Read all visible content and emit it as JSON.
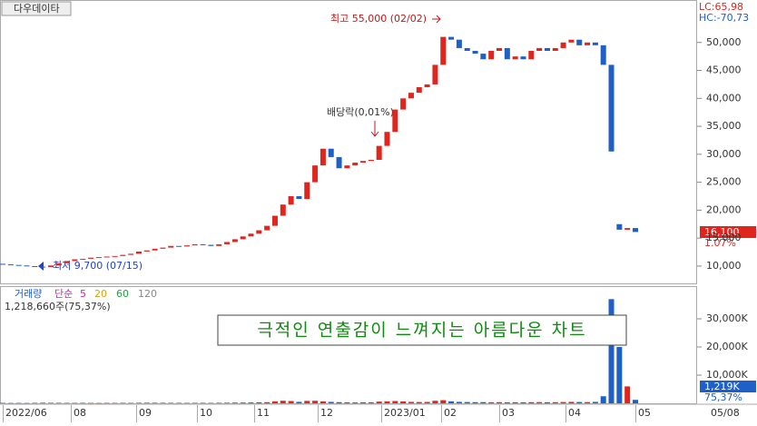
{
  "chart_data": [
    {
      "type": "candlestick",
      "title": "다우데이타",
      "indicators": [
        "LC:65,98",
        "HC:-70,73"
      ],
      "xlabels": [
        "2022/06",
        "08",
        "09",
        "10",
        "11",
        "12",
        "2023/01",
        "02",
        "03",
        "04",
        "05",
        "05/08"
      ],
      "open": [
        10400,
        10300,
        10200,
        10100,
        10000,
        9900,
        9800,
        10100,
        10500,
        10900,
        11200,
        11300,
        11500,
        11600,
        11700,
        11800,
        12000,
        12200,
        12600,
        12800,
        13100,
        13300,
        13600,
        13500,
        13700,
        13900,
        13800,
        13600,
        13900,
        14300,
        14800,
        15300,
        15800,
        16400,
        17200,
        19000,
        21000,
        22500,
        22000,
        25000,
        28000,
        31000,
        29500,
        27500,
        28000,
        28500,
        28800,
        29000,
        31500,
        34000,
        38000,
        40000,
        41000,
        42000,
        42500,
        46000,
        51000,
        50500,
        49000,
        48500,
        48000,
        47000,
        48500,
        49000,
        47000,
        47500,
        47000,
        48500,
        49000,
        48500,
        49000,
        50000,
        50500,
        49500,
        50000,
        49500,
        46000,
        17500,
        16500,
        16800
      ],
      "close": [
        10300,
        10200,
        10100,
        10000,
        9900,
        9800,
        10100,
        10500,
        10900,
        11200,
        11300,
        11500,
        11600,
        11700,
        11800,
        12000,
        12200,
        12600,
        12800,
        13100,
        13300,
        13600,
        13500,
        13700,
        13900,
        13800,
        13600,
        13900,
        14300,
        14800,
        15300,
        15800,
        16400,
        17200,
        19000,
        21000,
        22500,
        22000,
        25000,
        28000,
        31000,
        29500,
        27500,
        28000,
        28500,
        28800,
        29000,
        31500,
        34000,
        38000,
        40000,
        41000,
        42000,
        42500,
        46000,
        51000,
        50500,
        49000,
        48500,
        48000,
        47000,
        48500,
        49000,
        47000,
        47500,
        47000,
        48500,
        49000,
        48500,
        49000,
        50000,
        50500,
        49500,
        50000,
        49500,
        46000,
        30500,
        16500,
        16800,
        16100
      ],
      "up_color": "#e0251f",
      "down_color": "#1f5fc8",
      "ylim": [
        6900,
        57600
      ],
      "yticks": [
        {
          "value": 10000,
          "label": "10,000"
        },
        {
          "value": 15000,
          "label": "15,000"
        },
        {
          "value": 20000,
          "label": "20,000"
        },
        {
          "value": 25000,
          "label": "25,000"
        },
        {
          "value": 30000,
          "label": "30,000"
        },
        {
          "value": 35000,
          "label": "35,000"
        },
        {
          "value": 40000,
          "label": "40,000"
        },
        {
          "value": 45000,
          "label": "45,000"
        },
        {
          "value": 50000,
          "label": "50,000"
        }
      ],
      "annotations": {
        "high": "최고 55,000 (02/02)",
        "dividend": "배당락(0,01%)",
        "low": "최저 9,700 (07/15)"
      },
      "last": {
        "price": "16,100",
        "change": "1.07%"
      },
      "banner": "극적인 연출감이 느껴지는 아름다운 차트"
    },
    {
      "type": "volume",
      "title": "거래량",
      "ma_type": "단순",
      "legend": [
        {
          "label": "5",
          "color": "#d020c0"
        },
        {
          "label": "20",
          "color": "#e0a000"
        },
        {
          "label": "60",
          "color": "#20a040"
        },
        {
          "label": "120",
          "color": "#888888"
        }
      ],
      "summary": "1,218,660주(75,37%)",
      "values": [
        150,
        120,
        130,
        110,
        160,
        200,
        180,
        170,
        150,
        140,
        160,
        130,
        120,
        150,
        140,
        170,
        160,
        180,
        200,
        190,
        180,
        170,
        160,
        150,
        170,
        160,
        150,
        180,
        200,
        250,
        260,
        300,
        350,
        400,
        700,
        900,
        800,
        500,
        850,
        900,
        700,
        500,
        400,
        350,
        300,
        320,
        350,
        600,
        700,
        800,
        650,
        500,
        450,
        480,
        900,
        1100,
        700,
        500,
        450,
        400,
        420,
        380,
        400,
        350,
        380,
        360,
        400,
        420,
        380,
        400,
        450,
        500,
        450,
        420,
        500,
        2500,
        37000,
        20000,
        6000,
        1219
      ],
      "ylim": [
        0,
        41300
      ],
      "yticks": [
        {
          "value": 10000,
          "label": "10,000K"
        },
        {
          "value": 20000,
          "label": "20,000K"
        },
        {
          "value": 30000,
          "label": "30,000K"
        }
      ],
      "last": {
        "volume": "1,219K",
        "ratio": "75,37%"
      }
    }
  ]
}
